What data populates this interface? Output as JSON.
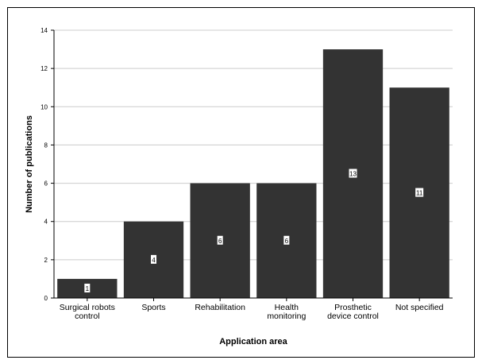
{
  "chart_data": {
    "type": "bar",
    "title": "",
    "xlabel": "Application area",
    "ylabel": "Number of publications",
    "categories": [
      [
        "Surgical robots",
        "control"
      ],
      [
        "Sports"
      ],
      [
        "Rehabilitation"
      ],
      [
        "Health",
        "monitoring"
      ],
      [
        "Prosthetic",
        "device control"
      ],
      [
        "Not specified"
      ]
    ],
    "values": [
      1,
      4,
      6,
      6,
      13,
      11
    ],
    "bar_labels": [
      "1",
      "4",
      "6",
      "6",
      "13",
      "11"
    ],
    "ylim": [
      0,
      14
    ],
    "yticks": [
      0,
      2,
      4,
      6,
      8,
      10,
      12,
      14
    ],
    "grid": true,
    "colors": {
      "bar": "#333333",
      "grid": "#cccccc",
      "axis": "#000000"
    }
  }
}
